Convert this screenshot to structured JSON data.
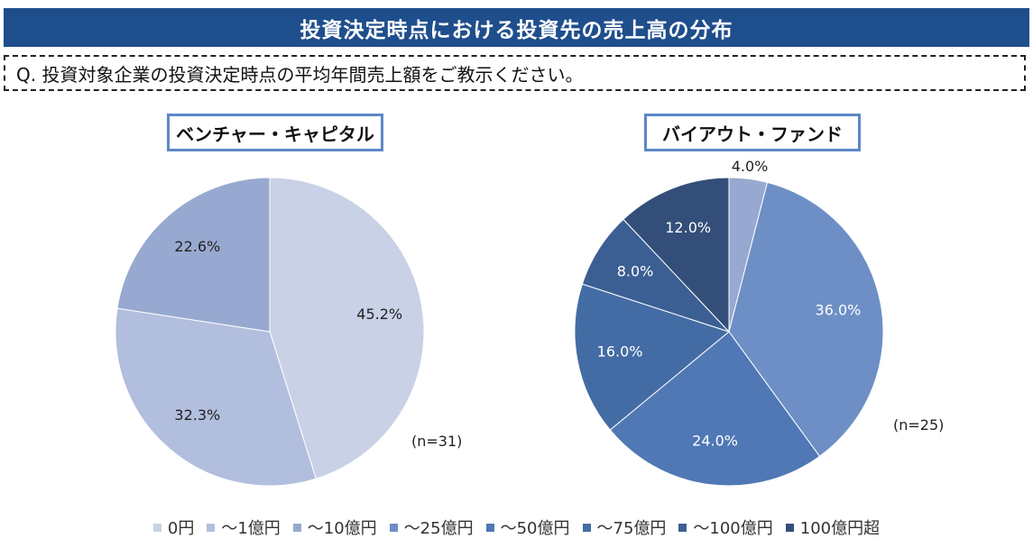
{
  "header": {
    "title": "投資決定時点における投資先の売上高の分布"
  },
  "question": {
    "text": "Q. 投資対象企業の投資決定時点の平均年間売上額をご教示ください。"
  },
  "categories": [
    "0円",
    "～1億円",
    "～10億円",
    "～25億円",
    "～50億円",
    "～75億円",
    "～100億円",
    "100億円超"
  ],
  "colors": [
    "#c9d1e6",
    "#b2bedd",
    "#97a9d0",
    "#6d8fc6",
    "#4f78b5",
    "#446ca4",
    "#3c5f93",
    "#334f79"
  ],
  "chart_data": [
    {
      "type": "pie",
      "title": "ベンチャー・キャピタル",
      "n_label": "(n=31)",
      "categories": [
        "0円",
        "～1億円",
        "～10億円"
      ],
      "values": [
        45.2,
        32.3,
        22.6
      ],
      "labels": [
        "45.2%",
        "32.3%",
        "22.6%"
      ],
      "color_index": [
        0,
        1,
        2
      ],
      "legend": "bottom"
    },
    {
      "type": "pie",
      "title": "バイアウト・ファンド",
      "n_label": "(n=25)",
      "categories": [
        "～10億円",
        "～25億円",
        "～50億円",
        "～75億円",
        "～100億円",
        "100億円超"
      ],
      "values": [
        4.0,
        36.0,
        24.0,
        16.0,
        8.0,
        12.0
      ],
      "labels": [
        "4.0%",
        "36.0%",
        "24.0%",
        "16.0%",
        "8.0%",
        "12.0%"
      ],
      "color_index": [
        2,
        3,
        4,
        5,
        6,
        7
      ],
      "legend": "bottom"
    }
  ]
}
